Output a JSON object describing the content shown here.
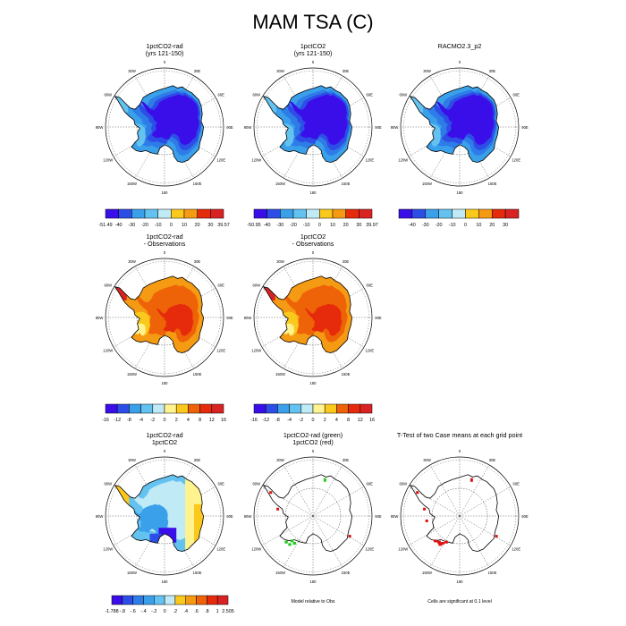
{
  "page_title": "MAM TSA (C)",
  "map": {
    "lon_labels": [
      "0",
      "30E",
      "60E",
      "90E",
      "120E",
      "150E",
      "180",
      "150W",
      "120W",
      "90W",
      "60W",
      "30W"
    ]
  },
  "colors": {
    "negative_scale": [
      "#3a0ee8",
      "#2c4ee6",
      "#2e7ce8",
      "#3aa0ea",
      "#63c2f0",
      "#bfeaf6"
    ],
    "positive_scale": [
      "#fff38f",
      "#fbc91c",
      "#f59a13",
      "#ee6208",
      "#e52b0c",
      "#d92323"
    ],
    "sig_red": "#dd1111",
    "sig_green": "#22cc22"
  },
  "chart_data": [
    {
      "type": "heatmap",
      "title": "1pctCO2-rad",
      "subtitle": "(yrs 121-150)",
      "colorbar_labels": [
        "-51.49",
        "-40",
        "-30",
        "-20",
        "-10",
        "0",
        "10",
        "20",
        "30",
        "39.57"
      ],
      "field": "cold"
    },
    {
      "type": "heatmap",
      "title": "1pctCO2",
      "subtitle": "(yrs 121-150)",
      "colorbar_labels": [
        "-50.95",
        "-40",
        "-30",
        "-20",
        "-10",
        "0",
        "10",
        "20",
        "30",
        "39.97"
      ],
      "field": "cold"
    },
    {
      "type": "heatmap",
      "title": "RACMO2.3_p2",
      "subtitle": "",
      "colorbar_labels": [
        "-40",
        "-30",
        "-20",
        "-10",
        "0",
        "10",
        "20",
        "30"
      ],
      "field": "cold"
    },
    {
      "type": "heatmap",
      "title": "1pctCO2-rad",
      "subtitle": "- Observations",
      "colorbar_labels": [
        "-16",
        "-12",
        "-8",
        "-4",
        "-2",
        "0",
        "2",
        "4",
        "8",
        "12",
        "16"
      ],
      "field": "warm"
    },
    {
      "type": "heatmap",
      "title": "1pctCO2",
      "subtitle": "- Observations",
      "colorbar_labels": [
        "-16",
        "-12",
        "-8",
        "-4",
        "-2",
        "0",
        "2",
        "4",
        "8",
        "12",
        "16"
      ],
      "field": "warm"
    },
    {
      "type": "heatmap",
      "title": "1pctCO2-rad",
      "subtitle": "1pctCO2",
      "colorbar_labels": [
        "-1.788",
        "-.8",
        "-.6",
        "-.4",
        "-.2",
        "0",
        ".2",
        ".4",
        ".6",
        ".8",
        "1",
        "2.505"
      ],
      "field": "diff"
    },
    {
      "type": "heatmap",
      "title": "1pctCO2-rad (green)",
      "subtitle": "1pctCO2 (red)",
      "footer": "Model relative to Obs",
      "field": "outline_green"
    },
    {
      "type": "heatmap",
      "title": "T-Test of two Case means at each grid point",
      "subtitle": "",
      "footer": "Cells are significant at 0.1 level",
      "field": "outline_red"
    }
  ]
}
